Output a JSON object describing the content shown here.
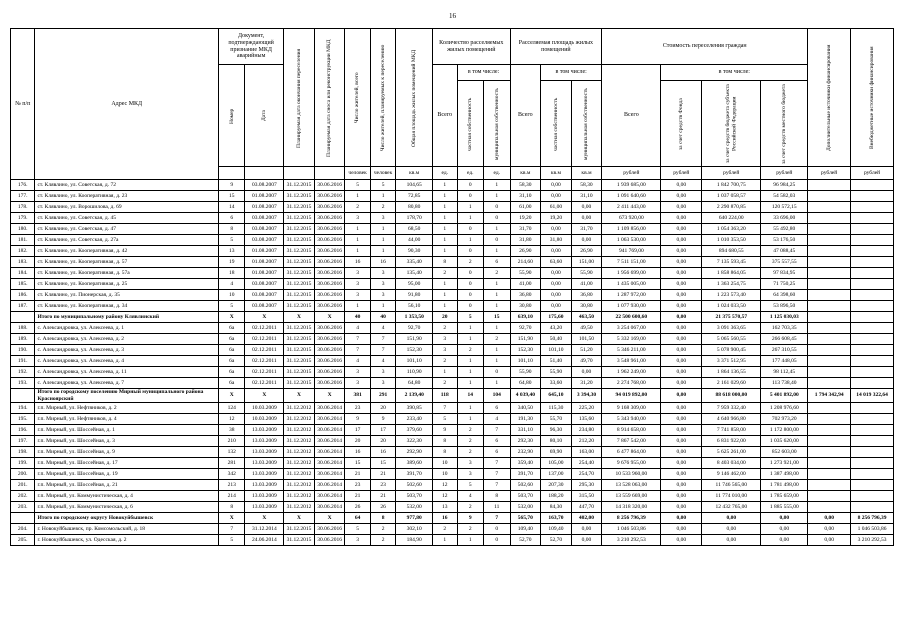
{
  "page": {
    "number": "16"
  },
  "table": {
    "header": {
      "num": "№ п/п",
      "address": "Адрес МКД",
      "doc": "Документ, подтверждающий признание МКД аварийным",
      "doc_number": "Номер",
      "doc_date": "Дата",
      "end_date": "Планируемая дата окончания переселения",
      "demolition_date": "Планируемая дата сноса или реконструкции МКД",
      "residents_total": "Число жителей, всего",
      "residents_planned": "Число жителей, планируемых к переселению",
      "total_area": "Общая площадь жилых помещений МКД",
      "units_group": "Количество расселяемых жилых помещений",
      "area_group": "Расселяемая площадь жилых помещений",
      "cost_group": "Стоимость переселения граждан",
      "total_label": "Всего",
      "including": "в том числе:",
      "private_prop": "частная собственность",
      "municipal_prop": "муниципальная собственность",
      "fund": "за счет средств Фонда",
      "subject": "за счет средств бюджета субъекта Российской Федерации",
      "local": "за счет средств местного бюджета",
      "additional": "Дополнительные источники финансирования",
      "extra": "Внебюджетные источники финансирования"
    },
    "units": [
      "",
      "",
      "",
      "",
      "человек",
      "человек",
      "кв.м",
      "ед.",
      "ед.",
      "ед.",
      "кв.м",
      "кв.м",
      "кв.м",
      "рублей",
      "рублей",
      "рублей",
      "рублей",
      "рублей",
      "рублей"
    ],
    "rows": [
      {
        "type": "data",
        "cells": [
          "176.",
          "ст. Клявлино, ул. Советская, д. 72",
          "9",
          "03.08.2007",
          "31.12.2015",
          "30.06.2016",
          "5",
          "5",
          "104,65",
          "1",
          "0",
          "1",
          "58,30",
          "0,00",
          "58,30",
          "1 939 685,00",
          "0,00",
          "1 842 700,75",
          "96 984,25",
          "",
          ""
        ]
      },
      {
        "type": "data",
        "cells": [
          "177.",
          "ст. Клявлино, ул. Кооперативная, д. 23",
          "15",
          "01.08.2007",
          "31.12.2015",
          "30.06.2016",
          "1",
          "1",
          "72,85",
          "1",
          "0",
          "1",
          "31,10",
          "0,00",
          "31,10",
          "1 091 640,60",
          "0,00",
          "1 037 058,57",
          "54 582,03",
          "",
          ""
        ]
      },
      {
        "type": "data",
        "cells": [
          "178.",
          "ст. Клявлино, ул. Ворошилова, д. 69",
          "14",
          "01.08.2007",
          "31.12.2015",
          "30.06.2016",
          "2",
          "2",
          "80,80",
          "1",
          "1",
          "0",
          "61,00",
          "61,00",
          "0,00",
          "2 411 443,00",
          "0,00",
          "2 290 870,85",
          "120 572,15",
          "",
          ""
        ]
      },
      {
        "type": "data",
        "cells": [
          "179.",
          "ст. Клявлино, ул. Советская, д. 45",
          "6",
          "03.08.2007",
          "31.12.2015",
          "30.06.2016",
          "3",
          "3",
          "178,70",
          "1",
          "1",
          "0",
          "19,20",
          "19,20",
          "0,00",
          "673 920,00",
          "0,00",
          "640 224,00",
          "33 696,00",
          "",
          ""
        ]
      },
      {
        "type": "data",
        "cells": [
          "180.",
          "ст. Клявлино, ул. Советская, д. 47",
          "8",
          "03.08.2007",
          "31.12.2015",
          "30.06.2016",
          "1",
          "1",
          "68,50",
          "1",
          "0",
          "1",
          "31,70",
          "0,00",
          "31,70",
          "1 109 856,00",
          "0,00",
          "1 054 363,20",
          "55 492,80",
          "",
          ""
        ]
      },
      {
        "type": "data",
        "cells": [
          "181.",
          "ст. Клявлино, ул. Советская, д. 27а",
          "5",
          "03.08.2007",
          "31.12.2015",
          "30.06.2016",
          "1",
          "1",
          "44,00",
          "1",
          "1",
          "0",
          "31,80",
          "31,80",
          "0,00",
          "1 063 530,00",
          "0,00",
          "1 010 353,50",
          "53 176,50",
          "",
          ""
        ]
      },
      {
        "type": "data",
        "cells": [
          "182.",
          "ст. Клявлино, ул. Кооперативная, д. 42",
          "13",
          "01.08.2007",
          "31.12.2015",
          "30.06.2016",
          "1",
          "1",
          "90,30",
          "1",
          "0",
          "1",
          "26,90",
          "0,00",
          "26,90",
          "941 769,00",
          "0,00",
          "894 680,55",
          "47 088,45",
          "",
          ""
        ]
      },
      {
        "type": "data",
        "cells": [
          "183.",
          "ст. Клявлино, ул. Кооперативная, д. 57",
          "19",
          "01.08.2007",
          "31.12.2015",
          "30.06.2016",
          "16",
          "16",
          "335,40",
          "8",
          "2",
          "6",
          "214,60",
          "63,60",
          "151,00",
          "7 511 151,00",
          "0,00",
          "7 135 593,45",
          "375 557,55",
          "",
          ""
        ]
      },
      {
        "type": "data",
        "cells": [
          "184.",
          "ст. Клявлино, ул. Кооперативная, д. 57а",
          "18",
          "01.08.2007",
          "31.12.2015",
          "30.06.2016",
          "3",
          "3",
          "135,40",
          "2",
          "0",
          "2",
          "55,90",
          "0,00",
          "55,90",
          "1 956 699,00",
          "0,00",
          "1 858 864,05",
          "97 834,95",
          "",
          ""
        ]
      },
      {
        "type": "data",
        "cells": [
          "185.",
          "ст. Клявлино, ул. Кооперативная, д. 25",
          "4",
          "03.08.2007",
          "31.12.2015",
          "30.06.2016",
          "3",
          "3",
          "95,00",
          "1",
          "0",
          "1",
          "41,00",
          "0,00",
          "41,00",
          "1 435 005,00",
          "0,00",
          "1 363 254,75",
          "71 750,25",
          "",
          ""
        ]
      },
      {
        "type": "data",
        "cells": [
          "186.",
          "ст. Клявлино, ул. Пионерская, д. 35",
          "10",
          "03.08.2007",
          "31.12.2015",
          "30.06.2016",
          "3",
          "3",
          "91,80",
          "1",
          "0",
          "1",
          "36,80",
          "0,00",
          "36,80",
          "1 287 972,00",
          "0,00",
          "1 223 573,40",
          "64 398,60",
          "",
          ""
        ]
      },
      {
        "type": "data",
        "cells": [
          "187.",
          "ст. Клявлино, ул. Кооперативная, д. 34",
          "5",
          "03.08.2007",
          "31.12.2015",
          "30.06.2016",
          "1",
          "1",
          "56,10",
          "1",
          "0",
          "1",
          "30,80",
          "0,00",
          "30,80",
          "1 077 930,00",
          "0,00",
          "1 024 033,50",
          "53 896,50",
          "",
          ""
        ]
      },
      {
        "type": "total",
        "cells": [
          "",
          "Итого по муниципальному району Клявлинский",
          "Х",
          "Х",
          "Х",
          "Х",
          "40",
          "40",
          "1 353,50",
          "20",
          "5",
          "15",
          "639,10",
          "175,60",
          "463,50",
          "22 500 600,60",
          "0,00",
          "21 375 570,57",
          "1 125 030,03",
          "",
          ""
        ]
      },
      {
        "type": "data",
        "cells": [
          "188.",
          "с. Александровка, ул. Алексеева, д. 1",
          "6а",
          "02.12.2011",
          "31.12.2015",
          "30.06.2016",
          "4",
          "4",
          "92,70",
          "2",
          "1",
          "1",
          "92,70",
          "43,20",
          "49,50",
          "3 254 067,00",
          "0,00",
          "3 091 363,65",
          "162 703,35",
          "",
          ""
        ]
      },
      {
        "type": "data",
        "cells": [
          "189.",
          "с. Александровка, ул. Алексеева, д. 2",
          "6а",
          "02.12.2011",
          "31.12.2015",
          "30.06.2016",
          "7",
          "7",
          "151,90",
          "3",
          "1",
          "2",
          "151,90",
          "50,40",
          "101,50",
          "5 332 169,00",
          "0,00",
          "5 065 560,55",
          "266 608,45",
          "",
          ""
        ]
      },
      {
        "type": "data",
        "cells": [
          "190.",
          "с. Александровка, ул. Алексеева, д. 3",
          "6а",
          "02.12.2011",
          "31.12.2015",
          "30.06.2016",
          "7",
          "7",
          "152,30",
          "3",
          "2",
          "1",
          "152,30",
          "101,10",
          "51,20",
          "5 346 211,00",
          "0,00",
          "5 078 900,45",
          "267 310,55",
          "",
          ""
        ]
      },
      {
        "type": "data",
        "cells": [
          "191.",
          "с. Александровка, ул. Алексеева, д. 4",
          "6а",
          "02.12.2011",
          "31.12.2015",
          "30.06.2016",
          "4",
          "4",
          "101,10",
          "2",
          "1",
          "1",
          "101,10",
          "51,40",
          "49,70",
          "3 548 961,00",
          "0,00",
          "3 371 512,95",
          "177 448,05",
          "",
          ""
        ]
      },
      {
        "type": "data",
        "cells": [
          "192.",
          "с. Александровка, ул. Алексеева, д. 11",
          "6а",
          "02.12.2011",
          "31.12.2015",
          "30.06.2016",
          "3",
          "3",
          "110,90",
          "1",
          "1",
          "0",
          "55,90",
          "55,90",
          "0,00",
          "1 962 249,00",
          "0,00",
          "1 864 136,55",
          "98 112,45",
          "",
          ""
        ]
      },
      {
        "type": "data",
        "cells": [
          "193.",
          "с. Александровка, ул. Алексеева, д. 7",
          "6а",
          "02.12.2011",
          "31.12.2015",
          "30.06.2016",
          "3",
          "3",
          "64,80",
          "2",
          "1",
          "1",
          "64,80",
          "33,60",
          "31,20",
          "2 274 768,00",
          "0,00",
          "2 161 029,60",
          "113 738,40",
          "",
          ""
        ]
      },
      {
        "type": "total",
        "cells": [
          "",
          "Итого по городскому поселению Мирный муниципального района Красноярский",
          "Х",
          "Х",
          "Х",
          "Х",
          "381",
          "291",
          "2 139,40",
          "118",
          "14",
          "104",
          "4 039,40",
          "645,10",
          "3 394,30",
          "94 019 892,00",
          "0,00",
          "88 618 000,00",
          "5 401 892,00",
          "1 794 342,94",
          "14 019 322,64"
        ]
      },
      {
        "type": "data",
        "cells": [
          "194.",
          "г.п. Мирный, ул. Нефтяников, д. 2",
          "124",
          "10.03.2009",
          "31.12.2012",
          "30.06.2014",
          "23",
          "20",
          "390,85",
          "7",
          "1",
          "6",
          "340,50",
          "115,30",
          "225,20",
          "9 168 309,00",
          "0,00",
          "7 959 332,40",
          "1 208 976,60",
          "",
          ""
        ]
      },
      {
        "type": "data",
        "cells": [
          "195.",
          "г.п. Мирный, ул. Нефтяников, д. 4",
          "12",
          "10.03.2009",
          "31.12.2012",
          "30.06.2014",
          "9",
          "9",
          "233,40",
          "5",
          "1",
          "4",
          "191,30",
          "55,70",
          "135,60",
          "5 343 940,00",
          "0,00",
          "4 640 966,80",
          "702 973,20",
          "",
          ""
        ]
      },
      {
        "type": "data",
        "cells": [
          "196.",
          "г.п. Мирный, ул. Шоссейная, д. 1",
          "38",
          "13.03.2009",
          "31.12.2012",
          "30.06.2014",
          "17",
          "17",
          "379,60",
          "9",
          "2",
          "7",
          "331,10",
          "96,30",
          "234,80",
          "8 914 658,00",
          "0,00",
          "7 741 858,00",
          "1 172 800,00",
          "",
          ""
        ]
      },
      {
        "type": "data",
        "cells": [
          "197.",
          "г.п. Мирный, ул. Шоссейная, д. 3",
          "210",
          "13.03.2009",
          "31.12.2012",
          "30.06.2014",
          "20",
          "20",
          "322,30",
          "8",
          "2",
          "6",
          "292,30",
          "80,10",
          "212,20",
          "7 867 542,00",
          "0,00",
          "6 831 922,00",
          "1 035 620,00",
          "",
          ""
        ]
      },
      {
        "type": "data",
        "cells": [
          "198.",
          "г.п. Мирный, ул. Шоссейная, д. 9",
          "132",
          "13.03.2009",
          "31.12.2012",
          "30.06.2014",
          "16",
          "16",
          "292,90",
          "8",
          "2",
          "6",
          "232,90",
          "69,90",
          "163,00",
          "6 477 864,00",
          "0,00",
          "5 625 261,00",
          "852 603,00",
          "",
          ""
        ]
      },
      {
        "type": "data",
        "cells": [
          "199.",
          "г.п. Мирный, ул. Шоссейная, д. 17",
          "281",
          "13.03.2009",
          "31.12.2012",
          "30.06.2014",
          "15",
          "15",
          "389,60",
          "10",
          "3",
          "7",
          "359,40",
          "105,00",
          "254,40",
          "9 676 955,00",
          "0,00",
          "8 403 034,00",
          "1 273 921,00",
          "",
          ""
        ]
      },
      {
        "type": "data",
        "cells": [
          "200.",
          "г.п. Мирный, ул. Шоссейная, д. 19",
          "342",
          "13.03.2009",
          "31.12.2012",
          "30.06.2014",
          "21",
          "21",
          "391,70",
          "10",
          "3",
          "7",
          "391,70",
          "137,00",
          "254,70",
          "10 533 960,00",
          "0,00",
          "9 146 462,00",
          "1 387 498,00",
          "",
          ""
        ]
      },
      {
        "type": "data",
        "cells": [
          "201.",
          "г.п. Мирный, ул. Шоссейная, д. 21",
          "213",
          "13.03.2009",
          "31.12.2012",
          "30.06.2014",
          "23",
          "23",
          "502,60",
          "12",
          "5",
          "7",
          "502,60",
          "207,30",
          "295,30",
          "13 528 063,00",
          "0,00",
          "11 746 565,00",
          "1 781 498,00",
          "",
          ""
        ]
      },
      {
        "type": "data",
        "cells": [
          "202.",
          "г.п. Мирный, ул. Коммунистическая, д. 4",
          "214",
          "13.03.2009",
          "31.12.2012",
          "30.06.2014",
          "21",
          "21",
          "503,70",
          "12",
          "4",
          "8",
          "503,70",
          "188,20",
          "315,50",
          "13 559 669,00",
          "0,00",
          "11 774 010,00",
          "1 785 659,00",
          "",
          ""
        ]
      },
      {
        "type": "data",
        "cells": [
          "203.",
          "г.п. Мирный, ул. Коммунистическая, д. 6",
          "8",
          "13.03.2009",
          "31.12.2012",
          "30.06.2014",
          "26",
          "26",
          "532,00",
          "13",
          "2",
          "11",
          "532,00",
          "84,30",
          "447,70",
          "14 318 320,00",
          "0,00",
          "12 432 765,00",
          "1 885 555,00",
          "",
          ""
        ]
      },
      {
        "type": "total",
        "cells": [
          "",
          "Итого по городскому округу Новокуйбышевск",
          "Х",
          "Х",
          "Х",
          "Х",
          "64",
          "8",
          "977,80",
          "16",
          "9",
          "7",
          "565,70",
          "163,70",
          "402,00",
          "8 256 796,39",
          "0,00",
          "0,00",
          "0,00",
          "0,00",
          "8 256 796,39"
        ]
      },
      {
        "type": "data",
        "cells": [
          "204.",
          "г. Новокуйбышевск, пр. Комсомольский, д. 18",
          "7",
          "31.12.2014",
          "31.12.2015",
          "30.06.2016",
          "5",
          "2",
          "302,10",
          "2",
          "2",
          "0",
          "109,40",
          "109,40",
          "0,00",
          "1 046 503,86",
          "0,00",
          "0,00",
          "0,00",
          "0,00",
          "1 046 503,86"
        ]
      },
      {
        "type": "data",
        "cells": [
          "205.",
          "г. Новокуйбышевск, ул. Одесская, д. 2",
          "5",
          "24.06.2014",
          "31.12.2015",
          "30.06.2016",
          "3",
          "2",
          "184,90",
          "1",
          "1",
          "0",
          "52,70",
          "52,70",
          "0,00",
          "3 210 292,53",
          "0,00",
          "0,00",
          "0,00",
          "0,00",
          "3 210 292,53"
        ]
      }
    ]
  }
}
